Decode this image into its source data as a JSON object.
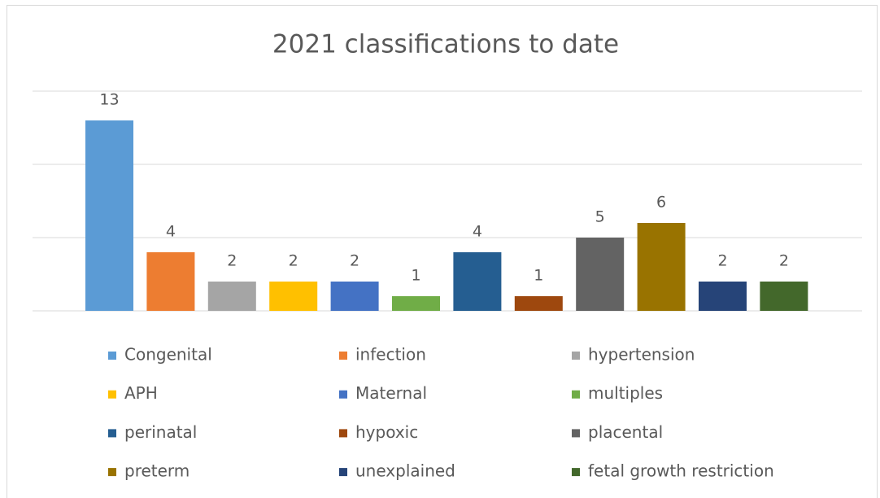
{
  "chart_data": {
    "type": "bar",
    "title": "2021 classifications to date",
    "ylim": [
      0,
      15
    ],
    "yticks": [
      0,
      5,
      10,
      15
    ],
    "grid": true,
    "legend": "bottom",
    "series": [
      {
        "name": "Congenital",
        "color": "#5b9bd5",
        "values": [
          13
        ]
      },
      {
        "name": "infection",
        "color": "#ed7d31",
        "values": [
          4
        ]
      },
      {
        "name": "hypertension",
        "color": "#a5a5a5",
        "values": [
          2
        ]
      },
      {
        "name": "APH",
        "color": "#ffc000",
        "values": [
          2
        ]
      },
      {
        "name": "Maternal",
        "color": "#4472c4",
        "values": [
          2
        ]
      },
      {
        "name": "multiples",
        "color": "#70ad47",
        "values": [
          1
        ]
      },
      {
        "name": "perinatal",
        "color": "#255e91",
        "values": [
          4
        ]
      },
      {
        "name": "hypoxic",
        "color": "#9e480e",
        "values": [
          1
        ]
      },
      {
        "name": "placental",
        "color": "#636363",
        "values": [
          5
        ]
      },
      {
        "name": "preterm",
        "color": "#997300",
        "values": [
          6
        ]
      },
      {
        "name": "unexplained",
        "color": "#264478",
        "values": [
          2
        ]
      },
      {
        "name": "fetal growth restriction",
        "color": "#43682b",
        "values": [
          2
        ]
      }
    ]
  }
}
